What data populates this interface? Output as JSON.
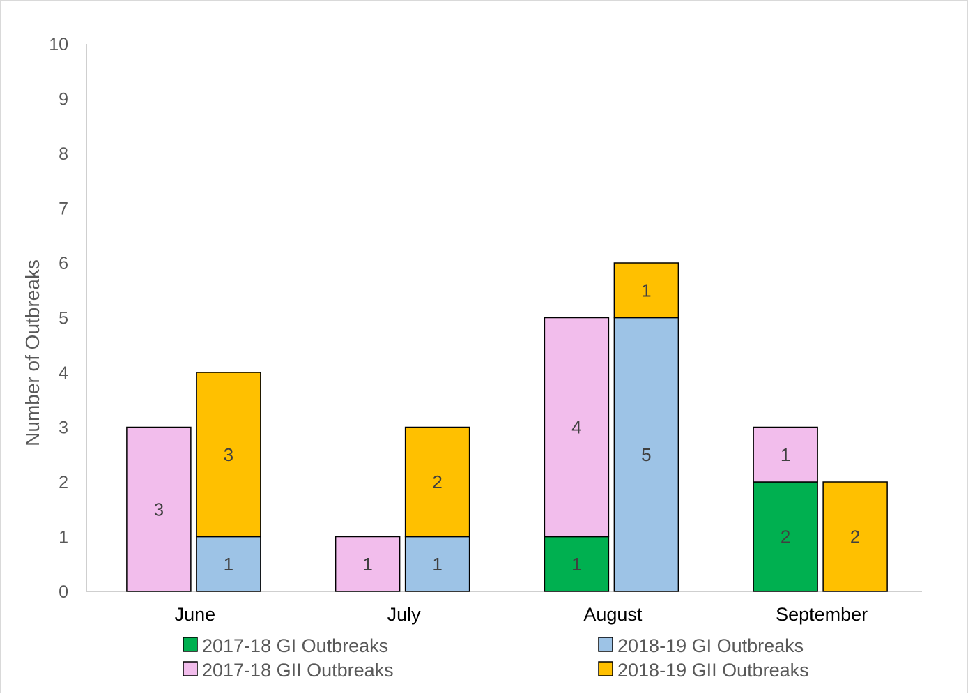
{
  "chart_data": {
    "type": "bar",
    "stacked": true,
    "categories": [
      "June",
      "July",
      "August",
      "September"
    ],
    "ylabel": "Number of Outbreaks",
    "xlabel": "",
    "title": "",
    "ylim": [
      0,
      10
    ],
    "yticks": [
      "0",
      "1",
      "2",
      "3",
      "4",
      "5",
      "6",
      "7",
      "8",
      "9",
      "10"
    ],
    "grid": false,
    "legend_position": "bottom",
    "stacks": [
      {
        "stack": "2017-18",
        "series": [
          {
            "name": "2017-18 GI Outbreaks",
            "color": "#00b050",
            "values": [
              0,
              0,
              1,
              2
            ],
            "labels": [
              "",
              "",
              "1",
              "2"
            ]
          },
          {
            "name": "2017-18 GII Outbreaks",
            "color": "#f2bdec",
            "values": [
              3,
              1,
              4,
              1
            ],
            "labels": [
              "3",
              "1",
              "4",
              "1"
            ]
          }
        ]
      },
      {
        "stack": "2018-19",
        "series": [
          {
            "name": "2018-19 GI Outbreaks",
            "color": "#9dc3e6",
            "values": [
              1,
              1,
              5,
              0
            ],
            "labels": [
              "1",
              "1",
              "5",
              ""
            ]
          },
          {
            "name": "2018-19 GII Outbreaks",
            "color": "#ffc000",
            "values": [
              3,
              2,
              1,
              2
            ],
            "labels": [
              "3",
              "2",
              "1",
              "2"
            ]
          }
        ]
      }
    ],
    "legend": [
      {
        "name": "2017-18 GI Outbreaks",
        "color": "#00b050"
      },
      {
        "name": "2018-19 GI Outbreaks",
        "color": "#9dc3e6"
      },
      {
        "name": "2017-18 GII Outbreaks",
        "color": "#f2bdec"
      },
      {
        "name": "2018-19 GII Outbreaks",
        "color": "#ffc000"
      }
    ]
  }
}
